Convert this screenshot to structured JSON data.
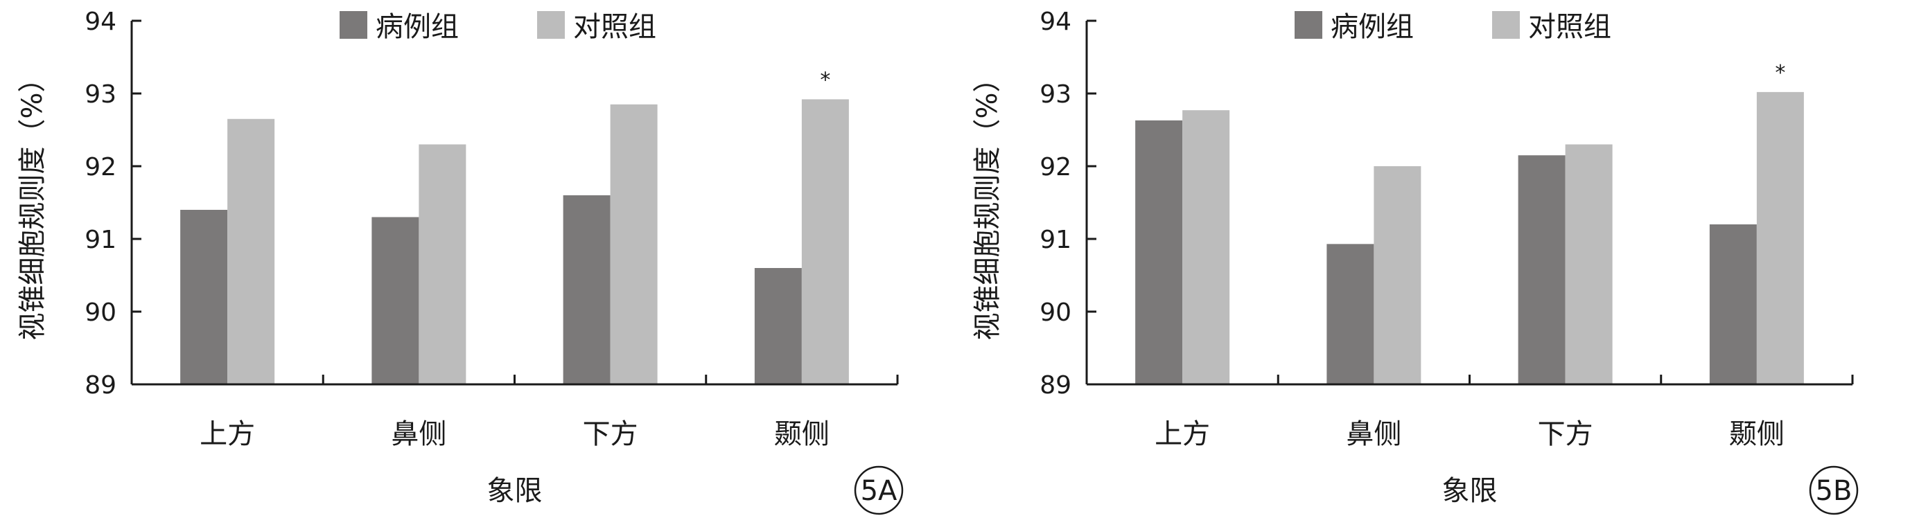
{
  "chart_data": [
    {
      "type": "bar",
      "panel_label": "5A",
      "xlabel": "象限",
      "ylabel": "视锥细胞规则度（%）",
      "ylim": [
        89,
        94
      ],
      "yticks": [
        89,
        90,
        91,
        92,
        93,
        94
      ],
      "categories": [
        "上方",
        "鼻侧",
        "下方",
        "颞侧"
      ],
      "series": [
        {
          "name": "病例组",
          "color": "#7b7979",
          "values": [
            91.4,
            91.3,
            91.6,
            90.6
          ]
        },
        {
          "name": "对照组",
          "color": "#bcbcbc",
          "values": [
            92.65,
            92.3,
            92.85,
            92.92
          ]
        }
      ],
      "annotations": [
        {
          "category": "颞侧",
          "series": "对照组",
          "text": "*"
        }
      ],
      "legend": "top-center",
      "grid": false
    },
    {
      "type": "bar",
      "panel_label": "5B",
      "xlabel": "象限",
      "ylabel": "视锥细胞规则度（%）",
      "ylim": [
        89,
        94
      ],
      "yticks": [
        89,
        90,
        91,
        92,
        93,
        94
      ],
      "categories": [
        "上方",
        "鼻侧",
        "下方",
        "颞侧"
      ],
      "series": [
        {
          "name": "病例组",
          "color": "#7b7979",
          "values": [
            92.63,
            90.93,
            92.15,
            91.2
          ]
        },
        {
          "name": "对照组",
          "color": "#bcbcbc",
          "values": [
            92.77,
            92.0,
            92.3,
            93.02
          ]
        }
      ],
      "annotations": [
        {
          "category": "颞侧",
          "series": "对照组",
          "text": "*"
        }
      ],
      "legend": "top-center",
      "grid": false
    }
  ]
}
